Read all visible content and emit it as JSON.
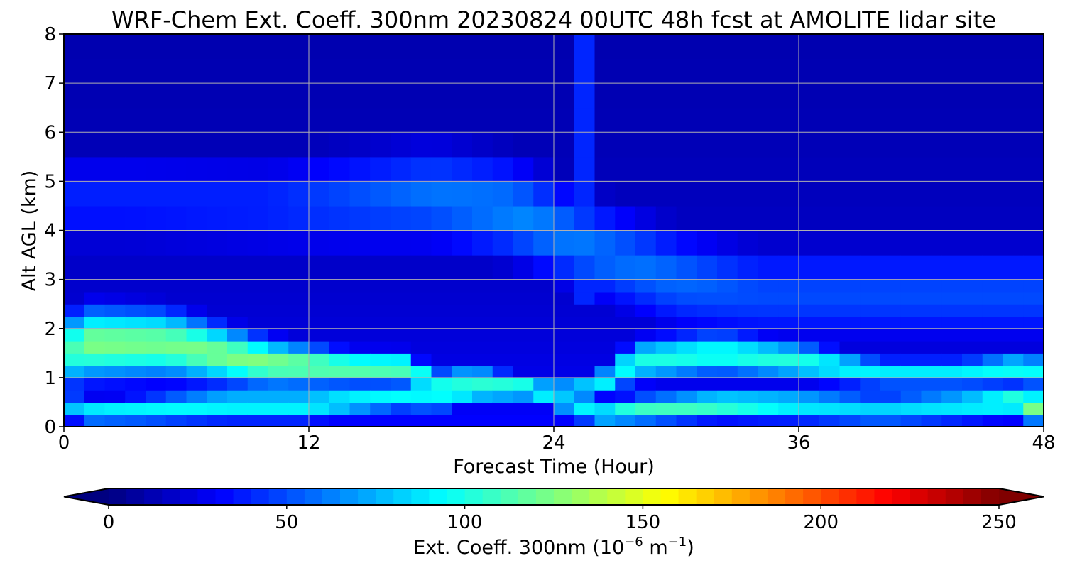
{
  "chart_data": {
    "type": "heatmap",
    "title": "WRF-Chem Ext. Coeff. 300nm  20230824 00UTC 48h fcst at AMOLITE lidar site",
    "xlabel": "Forecast Time (Hour)",
    "ylabel": "Alt AGL (km)",
    "xlim": [
      0,
      48
    ],
    "ylim": [
      0,
      8
    ],
    "xticks": [
      "0",
      "12",
      "24",
      "36",
      "48"
    ],
    "yticks": [
      "0",
      "1",
      "2",
      "3",
      "4",
      "5",
      "6",
      "7",
      "8"
    ],
    "grid": true,
    "colormap": "jet",
    "x": [
      0,
      1,
      2,
      3,
      4,
      5,
      6,
      7,
      8,
      9,
      10,
      11,
      12,
      13,
      14,
      15,
      16,
      17,
      18,
      19,
      20,
      21,
      22,
      23,
      24,
      25,
      26,
      27,
      28,
      29,
      30,
      31,
      32,
      33,
      34,
      35,
      36,
      37,
      38,
      39,
      40,
      41,
      42,
      43,
      44,
      45,
      46,
      47,
      48
    ],
    "y": [
      0,
      0.25,
      0.5,
      0.75,
      1,
      1.25,
      1.5,
      1.75,
      2,
      2.25,
      2.5,
      2.75,
      3,
      3.5,
      4,
      4.5,
      5,
      5.5,
      6,
      6.5,
      7,
      7.5,
      8
    ],
    "features": [
      {
        "name": "lower_band",
        "t": [
          0.5,
          1,
          4,
          8,
          12,
          15,
          17,
          18,
          20,
          23,
          24,
          26,
          28,
          32,
          36,
          40,
          44,
          47,
          48
        ],
        "center_km": [
          0.4,
          0.3,
          0.35,
          0.45,
          0.45,
          0.6,
          0.65,
          0.6,
          0.8,
          0.8,
          0.6,
          0.25,
          0.35,
          0.45,
          0.45,
          0.35,
          0.45,
          0.55,
          0.3
        ],
        "half_width_km": [
          0.3,
          0.25,
          0.3,
          0.35,
          0.35,
          0.35,
          0.3,
          0.35,
          0.3,
          0.25,
          0.25,
          0.25,
          0.3,
          0.3,
          0.35,
          0.35,
          0.35,
          0.35,
          0.35
        ],
        "peak": [
          80,
          95,
          92,
          95,
          95,
          92,
          95,
          90,
          108,
          108,
          88,
          95,
          108,
          112,
          92,
          82,
          92,
          112,
          140
        ]
      },
      {
        "name": "upper_band",
        "t": [
          0.5,
          1,
          5,
          10,
          14,
          17,
          18,
          20,
          24,
          26,
          28,
          32,
          36,
          40,
          44,
          47,
          48
        ],
        "center_km": [
          1.6,
          1.7,
          1.7,
          1.3,
          1.2,
          1.2,
          0.85,
          0.95,
          0.7,
          0.8,
          1.35,
          1.5,
          1.35,
          1.1,
          1.1,
          1.2,
          1.1
        ],
        "half_width_km": [
          0.75,
          0.75,
          0.7,
          0.5,
          0.35,
          0.35,
          0.3,
          0.3,
          0.25,
          0.25,
          0.45,
          0.45,
          0.4,
          0.3,
          0.3,
          0.35,
          0.35
        ],
        "peak": [
          112,
          125,
          122,
          126,
          120,
          116,
          95,
          108,
          95,
          92,
          100,
          102,
          102,
          90,
          90,
          100,
          90
        ]
      },
      {
        "name": "aloft_layer",
        "t": [
          3,
          10,
          18,
          22,
          26,
          30,
          34
        ],
        "center_km": [
          4.6,
          4.5,
          4.7,
          4.4,
          3.6,
          3.0,
          2.7
        ],
        "peak": [
          40,
          42,
          60,
          65,
          60,
          58,
          50
        ]
      }
    ],
    "colorbar": {
      "label": "Ext. Coeff. 300nm  (10",
      "label_exp1": "−6",
      "label_mid": " m",
      "label_exp2": "−1",
      "label_end": ")",
      "ticks": [
        "0",
        "50",
        "100",
        "150",
        "200",
        "250"
      ],
      "range": [
        0,
        250
      ],
      "extend": "both"
    }
  }
}
